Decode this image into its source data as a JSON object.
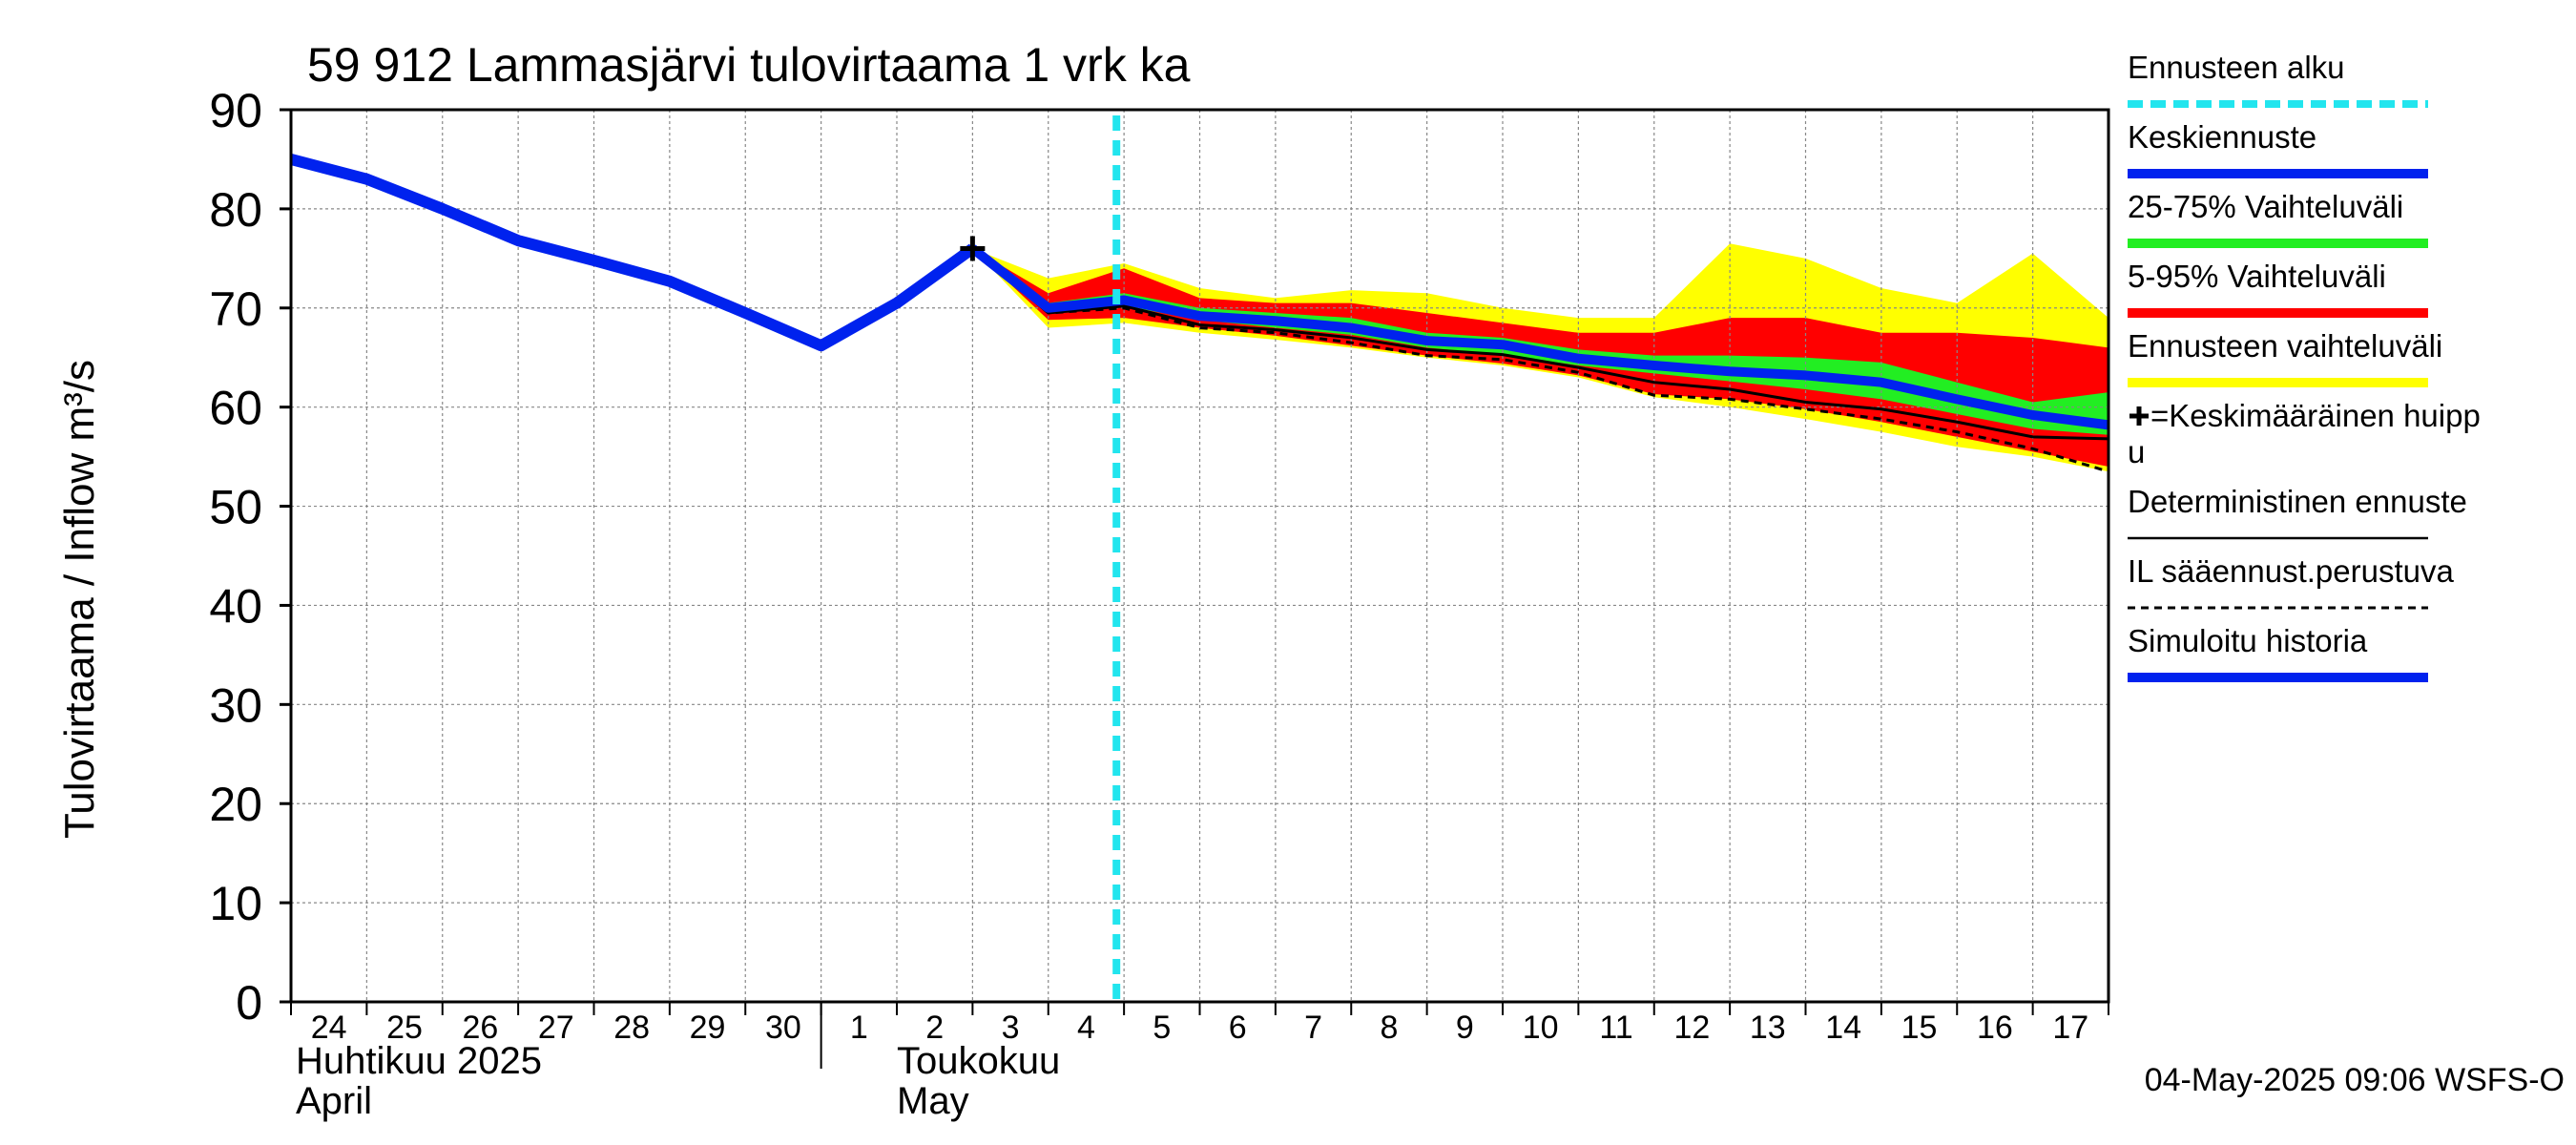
{
  "chart_data": {
    "type": "area",
    "title": "59 912 Lammasjärvi tulovirtaama 1 vrk ka",
    "ylabel": "Tulovirtaama / Inflow    m³/s",
    "ylim": [
      0,
      90
    ],
    "yticks": [
      "0",
      "10",
      "20",
      "30",
      "40",
      "50",
      "60",
      "70",
      "80",
      "90"
    ],
    "x_day_ticks": [
      "24",
      "25",
      "26",
      "27",
      "28",
      "29",
      "30",
      "1",
      "2",
      "3",
      "4",
      "5",
      "6",
      "7",
      "8",
      "9",
      "10",
      "11",
      "12",
      "13",
      "14",
      "15",
      "16",
      "17"
    ],
    "month_labels": {
      "april_fi": "Huhtikuu  2025",
      "april_en": "April",
      "may_fi": "Toukokuu",
      "may_en": "May"
    },
    "forecast_start_day": 10.9,
    "simulated_history": {
      "days": [
        0,
        1,
        2,
        3,
        4,
        5,
        6,
        7,
        8,
        9
      ],
      "values": [
        85,
        83,
        80,
        76.8,
        74.8,
        72.7,
        69.5,
        66.2,
        70.5,
        76
      ]
    },
    "forecast_days": [
      9,
      10,
      11,
      12,
      13,
      14,
      15,
      16,
      17,
      18,
      19,
      20,
      21,
      22,
      23,
      24
    ],
    "ennusteen_vaihteluvali": {
      "upper": [
        76,
        73,
        74.5,
        72,
        71,
        71.8,
        71.5,
        70,
        69,
        69,
        76.5,
        75,
        72,
        70.5,
        75.5,
        69
      ],
      "lower": [
        76,
        68,
        68.5,
        67.5,
        66.8,
        66,
        65,
        64.2,
        63,
        61,
        60,
        58.8,
        57.5,
        56,
        55,
        53.5
      ]
    },
    "vaihteluvali_5_95": {
      "upper": [
        76,
        71.5,
        74,
        71,
        70.5,
        70.5,
        69.5,
        68.5,
        67.5,
        67.5,
        69,
        69,
        67.5,
        67.5,
        67,
        66
      ],
      "lower": [
        76,
        68.8,
        69,
        68,
        67.2,
        66.2,
        65.2,
        64.4,
        63.2,
        61.3,
        60.8,
        59.8,
        58.5,
        57,
        55.5,
        54
      ]
    },
    "vaihteluvali_25_75": {
      "upper": [
        76,
        70.5,
        71.5,
        70,
        69.5,
        69,
        67.5,
        67,
        65.8,
        65.2,
        65.2,
        65,
        64.5,
        62.5,
        60.5,
        61.5
      ],
      "lower": [
        76,
        69.5,
        70.2,
        68.8,
        68,
        67.3,
        66,
        65.3,
        64.2,
        63.4,
        62.6,
        61.8,
        60.8,
        59.3,
        57.8,
        57.2
      ]
    },
    "keskiennuste": [
      76,
      70,
      70.8,
      69.2,
      68.7,
      68,
      66.7,
      66.3,
      64.9,
      64.2,
      63.6,
      63.2,
      62.5,
      60.8,
      59.2,
      58.2
    ],
    "deterministinen": [
      76,
      69.5,
      70.2,
      68.3,
      67.8,
      67,
      65.8,
      65.3,
      64,
      62.5,
      61.8,
      60.5,
      59.8,
      58.5,
      57,
      56.8
    ],
    "il_saaennuste": [
      76,
      69.5,
      70,
      68,
      67.5,
      66.5,
      65.2,
      64.8,
      63.5,
      61.2,
      60.8,
      59.8,
      58.8,
      57.5,
      55.8,
      53.5
    ],
    "peak_marker": {
      "day": 9,
      "value": 76
    },
    "legend": [
      {
        "label": "Ennusteen alku",
        "color": "#22e5ee",
        "style": "dashed"
      },
      {
        "label": "Keskiennuste",
        "color": "#0022ee",
        "style": "solid"
      },
      {
        "label": "25-75% Vaihteluväli",
        "color": "#22ee22",
        "style": "solid"
      },
      {
        "label": "5-95% Vaihteluväli",
        "color": "#ff0000",
        "style": "solid"
      },
      {
        "label": "Ennusteen vaihteluväli",
        "color": "#ffff00",
        "style": "solid"
      },
      {
        "label": "=Keskimääräinen huipp",
        "label2": "u",
        "color": "#000000",
        "style": "plus"
      },
      {
        "label": "Deterministinen ennuste",
        "color": "#000000",
        "style": "thin"
      },
      {
        "label": "IL sääennust.perustuva",
        "color": "#000000",
        "style": "dotted"
      },
      {
        "label": "Simuloitu historia",
        "color": "#0022ee",
        "style": "solid"
      }
    ],
    "footer": "04-May-2025 09:06 WSFS-O"
  }
}
